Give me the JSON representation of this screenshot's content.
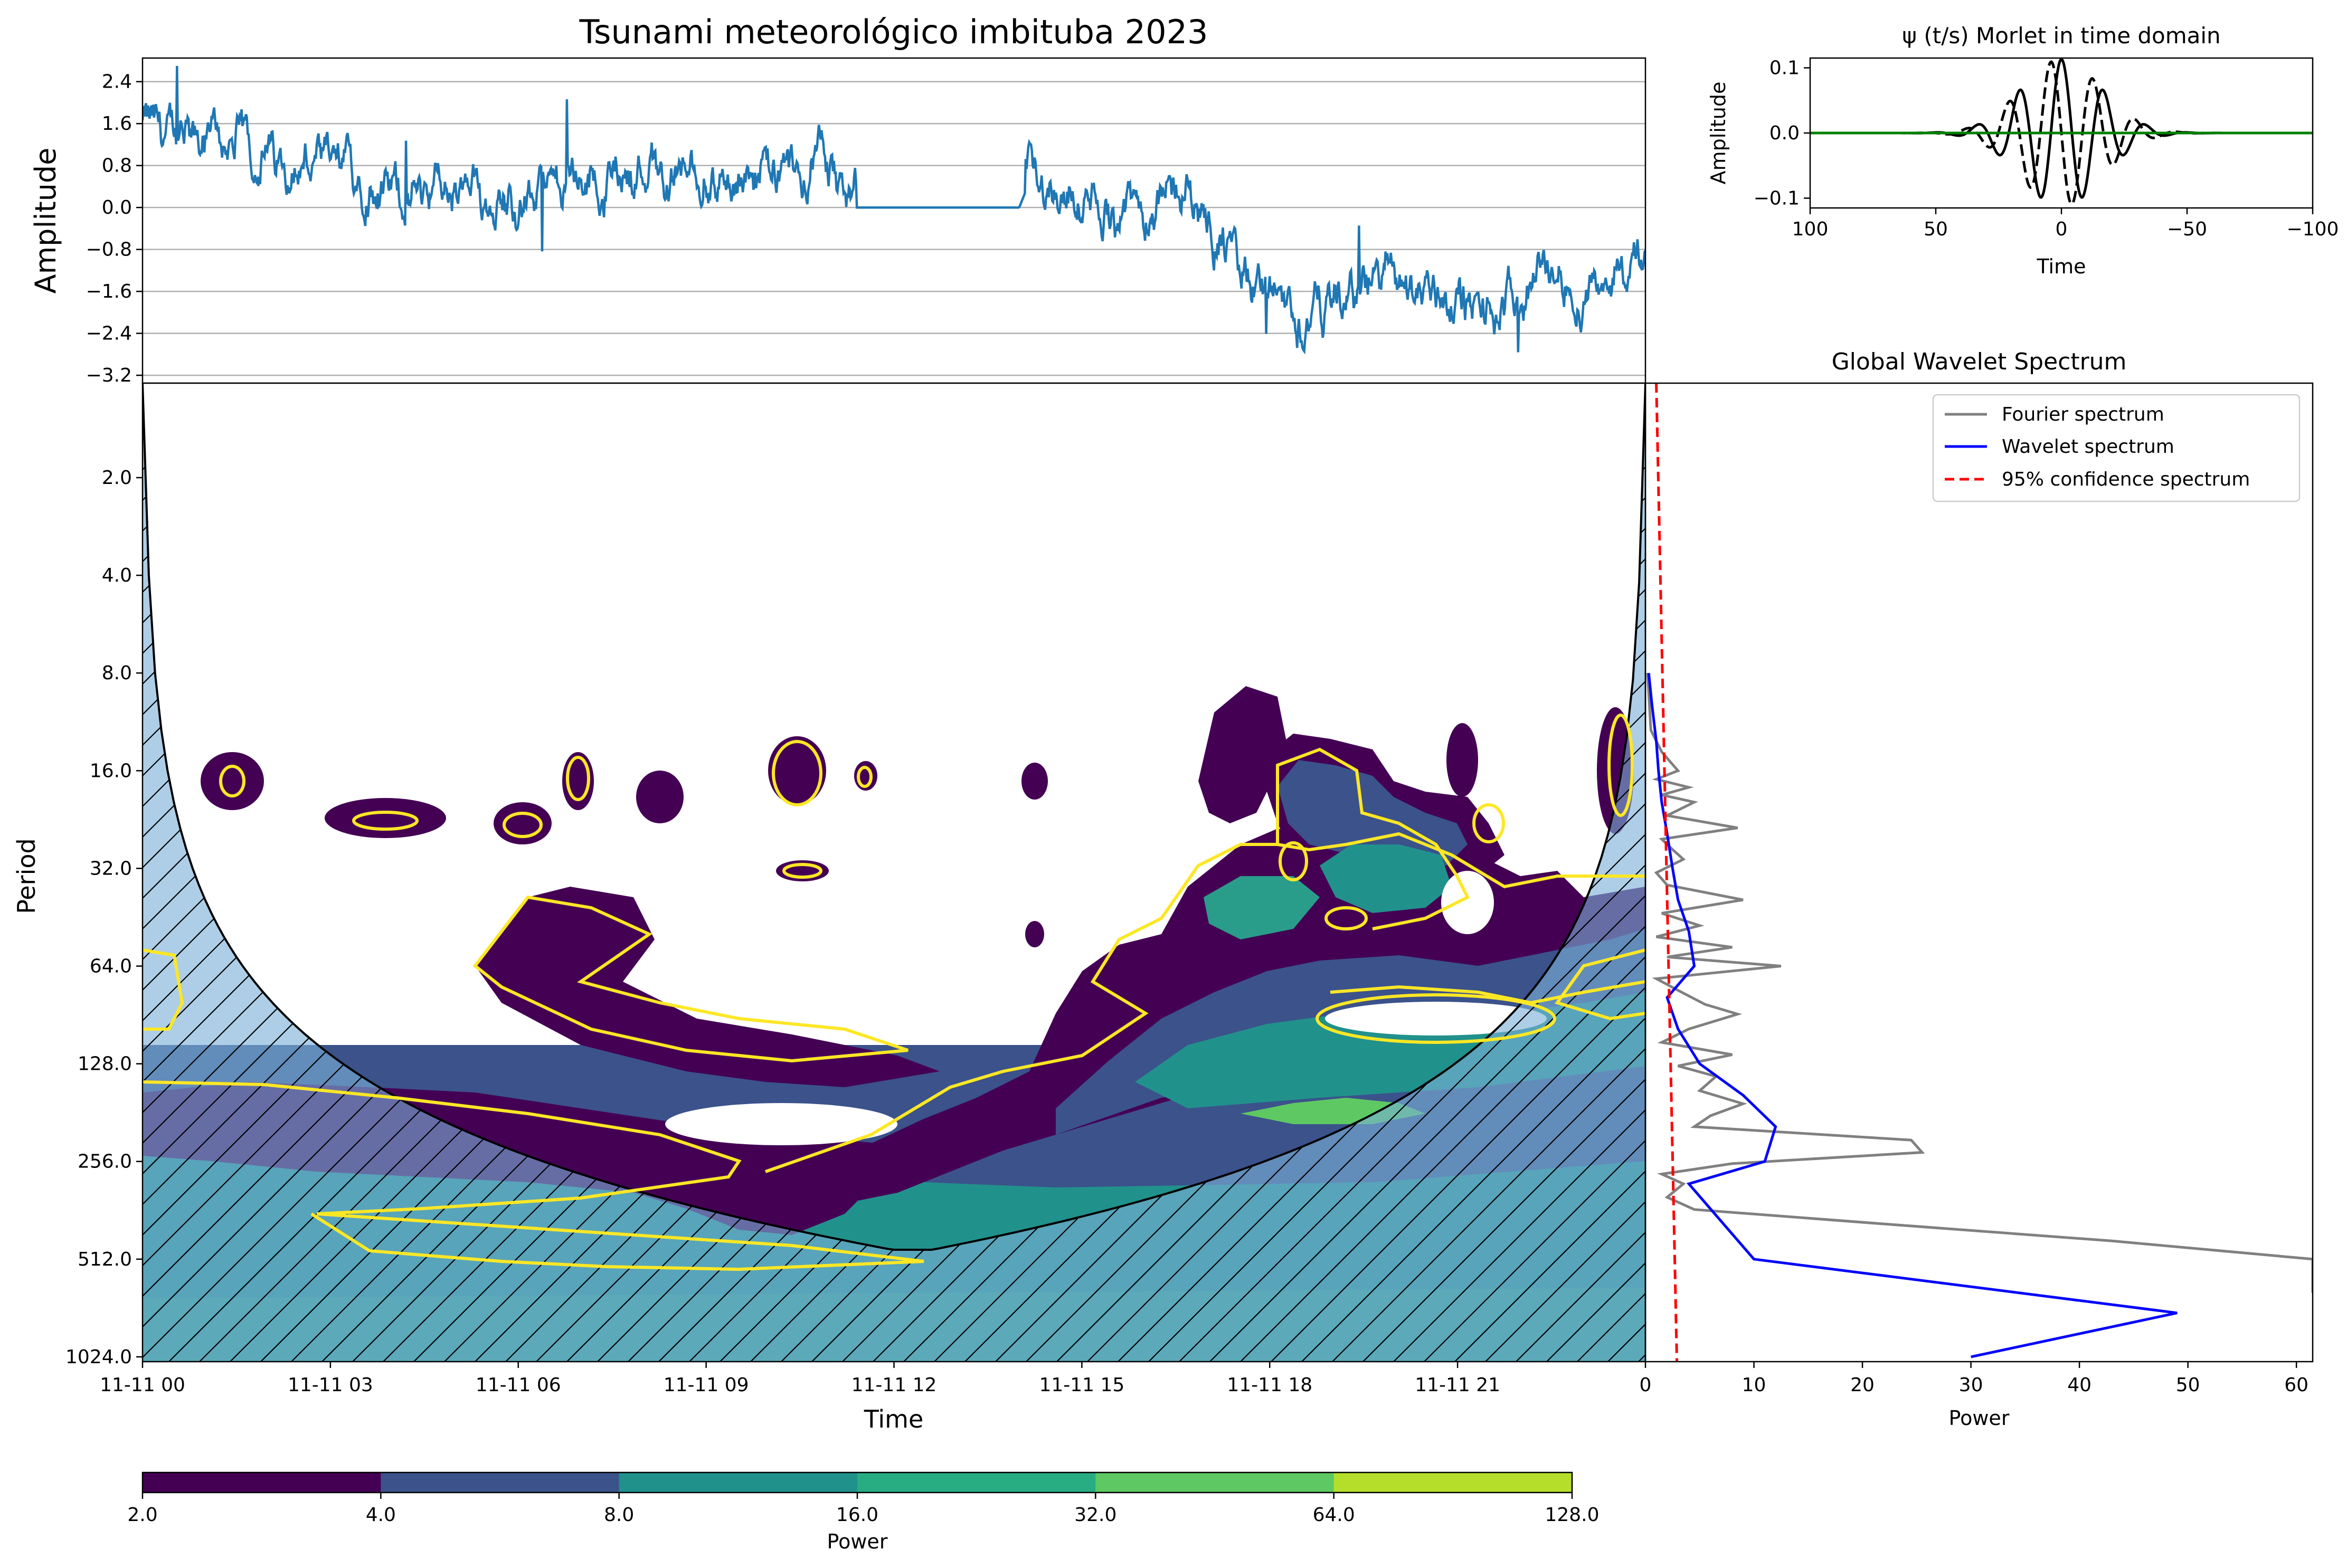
{
  "figure": {
    "main_title": "Tsunami meteorológico imbituba 2023",
    "colors": {
      "series_blue": "#1f77b4",
      "viridis": [
        "#440154",
        "#3b528b",
        "#21918c",
        "#5ec962",
        "#b5de2b",
        "#fde725"
      ],
      "contour_yellow": "#fde725",
      "coi_fill": "#7ab0d6",
      "fourier_gray": "#808080",
      "wavelet_blue": "#0000ff",
      "confidence_red": "#ff0000",
      "morlet_green": "#008000"
    }
  },
  "chart_data": [
    {
      "id": "timeseries",
      "type": "line",
      "title": "",
      "xlabel": "",
      "ylabel": "Amplitude",
      "yticks": [
        "2.4",
        "1.6",
        "0.8",
        "0.0",
        "−0.8",
        "−1.6",
        "−2.4",
        "−3.2"
      ],
      "ylim": [
        -3.35,
        2.85
      ],
      "grid": "horizontal",
      "x_range": [
        "11-11 00",
        "11-12 00"
      ],
      "series": [
        {
          "name": "",
          "x_hours": [
            0,
            1,
            2,
            3,
            4,
            5,
            6,
            7,
            8,
            9,
            10,
            11,
            11.3,
            12,
            13,
            14,
            14.2,
            15,
            16,
            16.5,
            17,
            17.5,
            18,
            18.5,
            19,
            20,
            21,
            21.5,
            22,
            22.5,
            23,
            23.5,
            24
          ],
          "values": [
            1.6,
            1.2,
            1.0,
            0.6,
            0.5,
            0.4,
            0.2,
            0.4,
            0.7,
            0.4,
            0.6,
            0.8,
            0.0,
            0.0,
            0.0,
            0.0,
            0.6,
            -0.2,
            -0.2,
            0.4,
            -0.3,
            -1.2,
            -1.4,
            -2.3,
            -1.8,
            -1.3,
            -1.5,
            -2.0,
            -1.6,
            -0.9,
            -1.5,
            -1.0,
            -1.1
          ]
        }
      ]
    },
    {
      "id": "morlet",
      "type": "line",
      "title": "ψ (t/s) Morlet in time domain",
      "xlabel": "Time",
      "ylabel": "Amplitude",
      "xticks": [
        "100",
        "50",
        "0",
        "−50",
        "−100"
      ],
      "xlim": [
        100,
        -100
      ],
      "yticks": [
        "0.1",
        "0.0",
        "−0.1"
      ],
      "ylim": [
        -0.115,
        0.115
      ],
      "series": [
        {
          "name": "",
          "part": "real",
          "style": "solid"
        },
        {
          "name": "",
          "part": "imag",
          "style": "dashed"
        },
        {
          "name": "",
          "part": "zero",
          "style": "green"
        }
      ]
    },
    {
      "id": "wavelet_power",
      "type": "heatmap",
      "title": "",
      "xlabel": "Time",
      "ylabel": "Period",
      "xticks": [
        "11-11 00",
        "11-11 03",
        "11-11 06",
        "11-11 09",
        "11-11 12",
        "11-11 15",
        "11-11 18",
        "11-11 21"
      ],
      "yticks": [
        "2.0",
        "4.0",
        "8.0",
        "16.0",
        "32.0",
        "64.0",
        "128.0",
        "256.0",
        "512.0",
        "1024.0"
      ],
      "yscale": "log2 (inverted)",
      "levels": [
        2,
        4,
        8,
        16,
        32,
        64,
        128
      ],
      "cone_of_influence": "hatched",
      "significance_contour": "yellow"
    },
    {
      "id": "global_spectrum",
      "type": "line",
      "title": "Global Wavelet Spectrum",
      "xlabel": "Power",
      "ylabel": "",
      "xticks": [
        "0",
        "10",
        "20",
        "30",
        "40",
        "50",
        "60"
      ],
      "xlim": [
        0,
        61.5
      ],
      "legend_position": "top-right",
      "series": [
        {
          "name": "Fourier spectrum",
          "style": "gray",
          "periods": [
            8,
            12,
            14,
            16,
            17,
            18,
            19,
            20,
            22,
            24,
            26,
            28,
            30,
            33,
            36,
            40,
            44,
            48,
            52,
            56,
            60,
            64,
            70,
            76,
            84,
            90,
            100,
            110,
            120,
            130,
            140,
            155,
            170,
            185,
            200,
            220,
            240,
            260,
            280,
            300,
            330,
            360,
            400,
            450,
            512,
            580,
            650
          ],
          "values": [
            0.2,
            0.5,
            1.5,
            3.0,
            1.0,
            4.0,
            1.5,
            4.5,
            2.0,
            8.5,
            1.5,
            2.5,
            3.5,
            1.0,
            2.0,
            9.0,
            1.5,
            5.0,
            1.0,
            8.0,
            2.0,
            12.5,
            1.0,
            3.0,
            5.5,
            8.5,
            4.0,
            1.5,
            8.0,
            3.0,
            6.5,
            5.0,
            9.0,
            6.0,
            4.5,
            24.5,
            25.5,
            8.0,
            1.5,
            3.5,
            2.0,
            4.5,
            22.5,
            43.0,
            61.5,
            61.5,
            61.5
          ]
        },
        {
          "name": "Wavelet spectrum",
          "style": "blue",
          "periods": [
            8,
            10,
            13,
            16,
            20,
            25,
            32,
            40,
            50,
            64,
            80,
            100,
            128,
            160,
            200,
            256,
            300,
            512,
            750,
            1024
          ],
          "values": [
            0.3,
            0.6,
            1.0,
            1.2,
            1.5,
            2.0,
            2.5,
            3.0,
            4.0,
            4.5,
            2.0,
            3.0,
            5.0,
            9.0,
            12.0,
            11.0,
            4.0,
            10.0,
            49.0,
            30.0
          ]
        },
        {
          "name": "95% confidence spectrum",
          "style": "red-dashed",
          "periods": [
            1.0,
            1024
          ],
          "values": [
            1.0,
            2.9
          ]
        }
      ]
    },
    {
      "id": "colorbar",
      "type": "heatmap",
      "title": "",
      "xlabel": "Power",
      "ticks": [
        "2.0",
        "4.0",
        "8.0",
        "16.0",
        "32.0",
        "64.0",
        "128.0"
      ],
      "colors": [
        "#440154",
        "#3b528b",
        "#21918c",
        "#27ad81",
        "#5ec962",
        "#b5de2b"
      ]
    }
  ]
}
